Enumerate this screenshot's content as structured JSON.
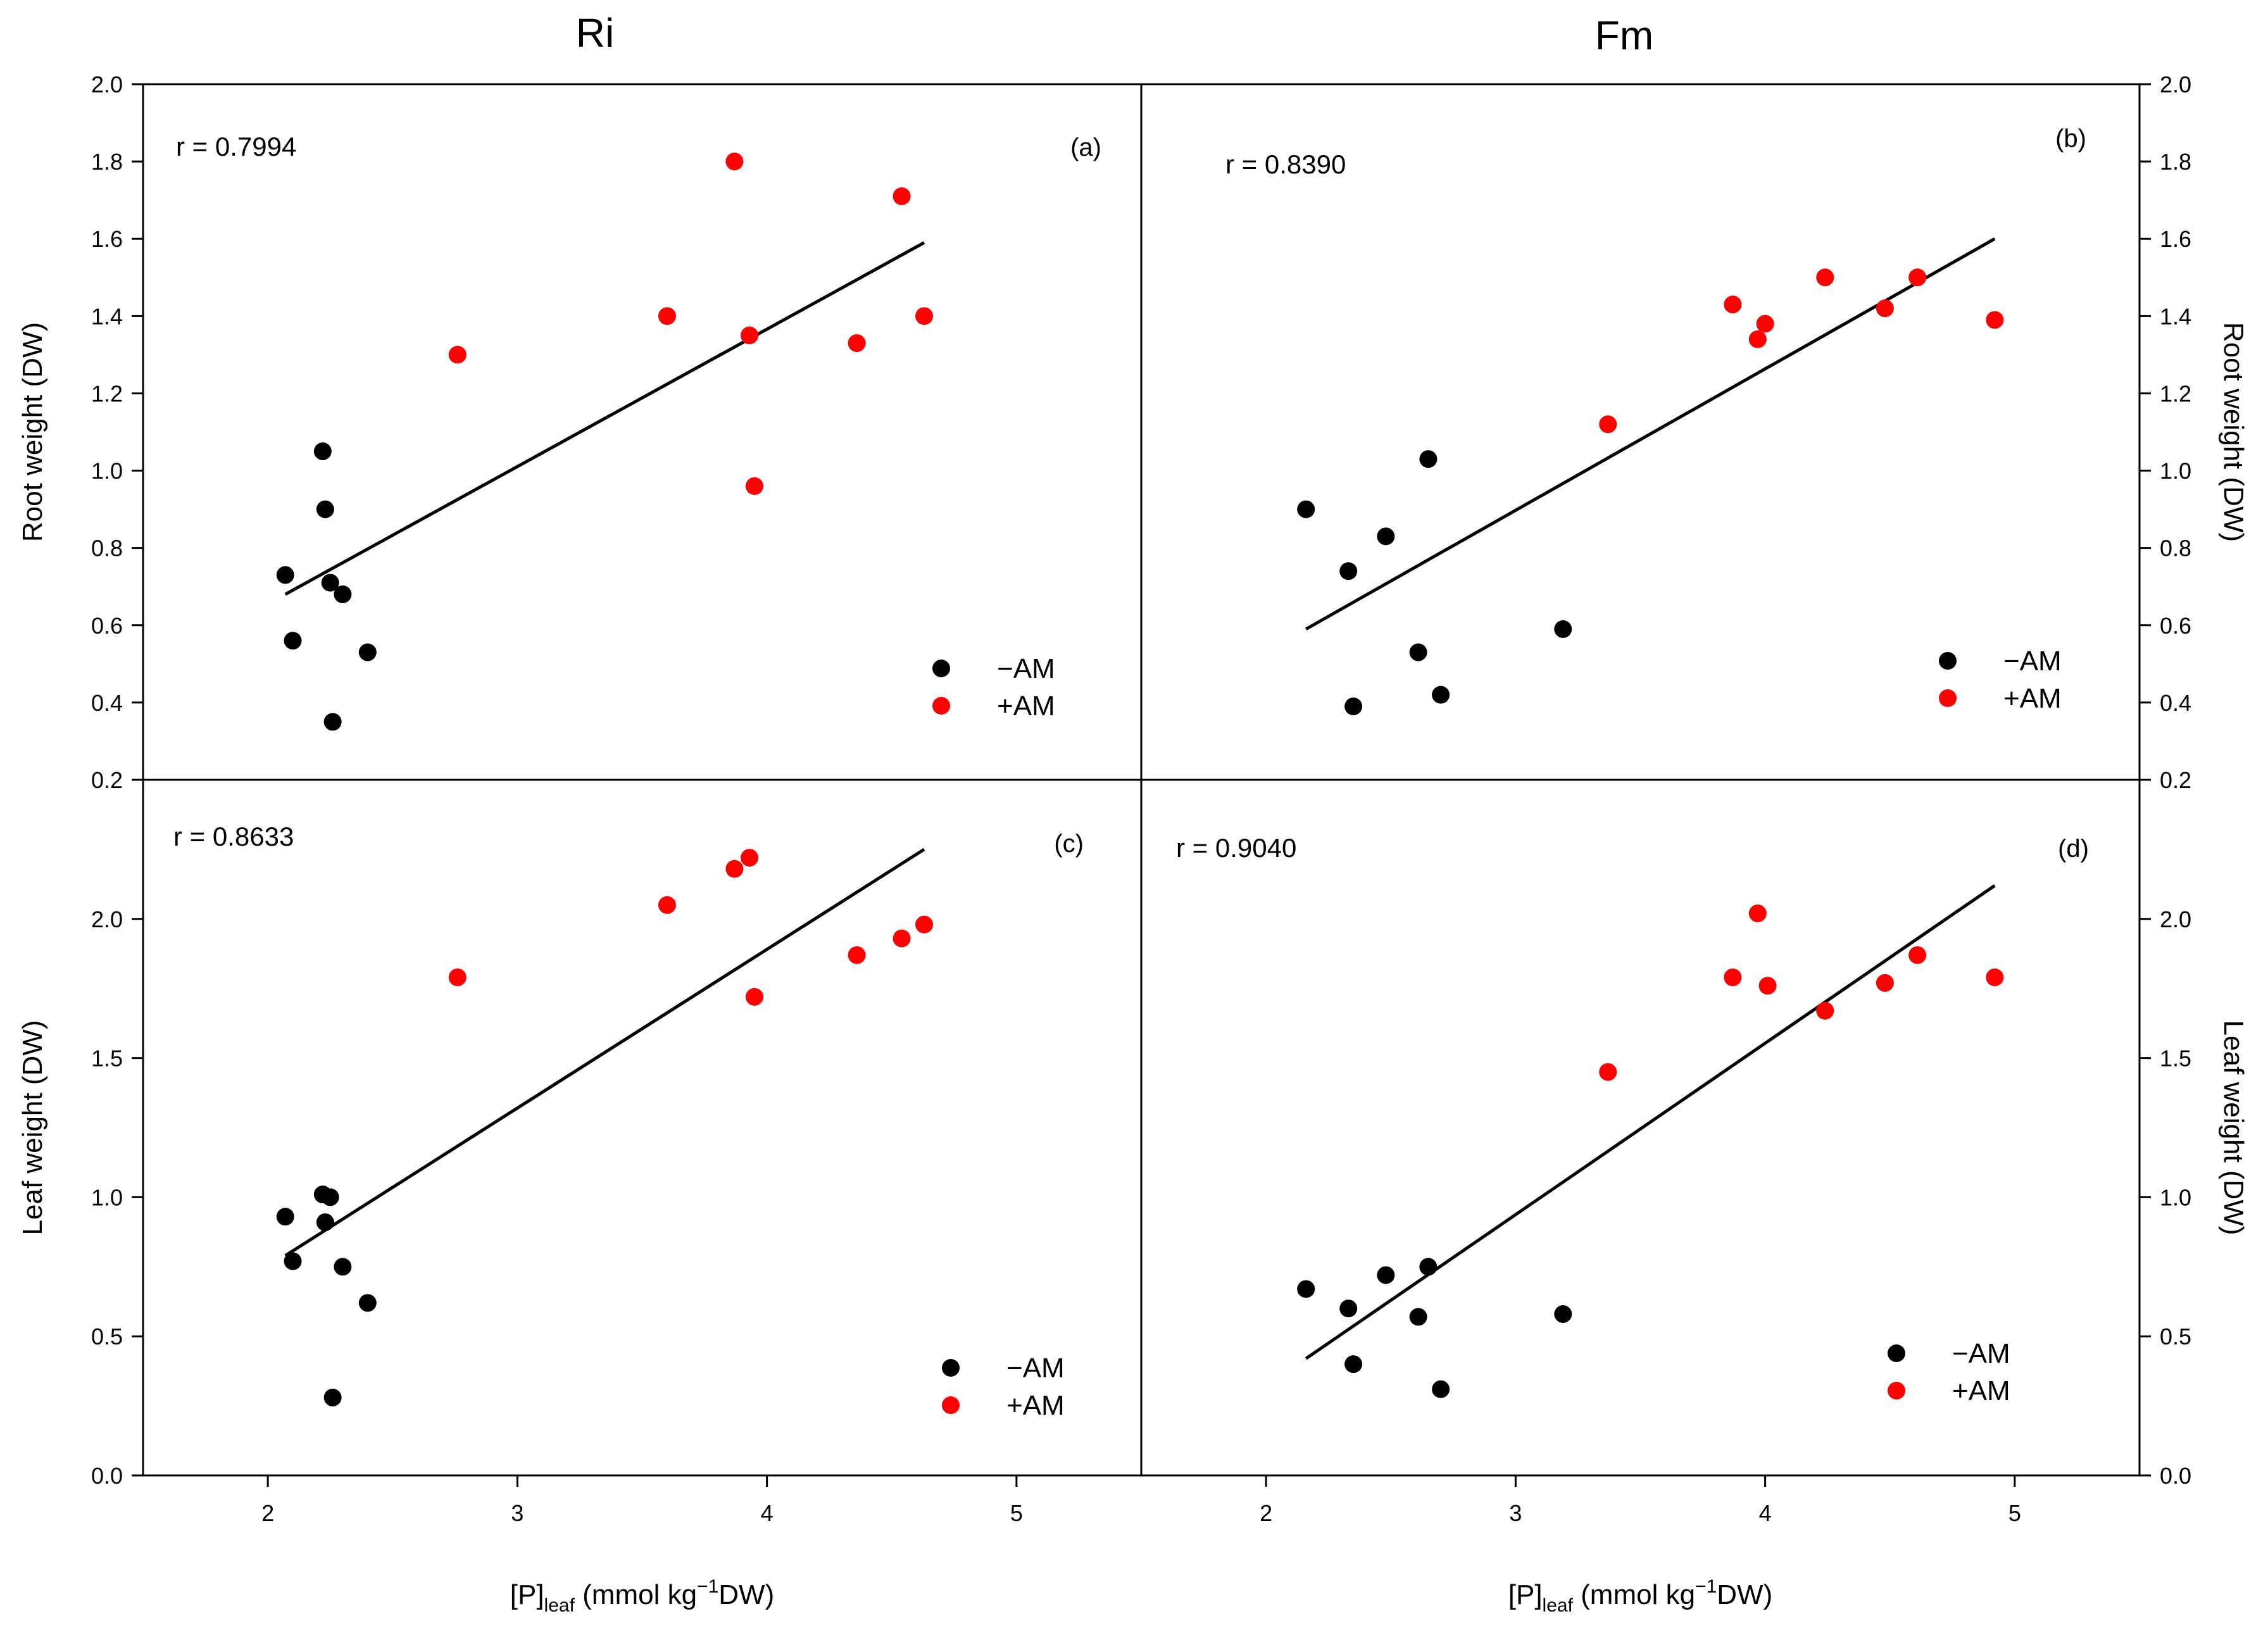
{
  "figure": {
    "column_titles": [
      "Ri",
      "Fm"
    ],
    "xlabel": {
      "prefix": "[P]",
      "subscript": "leaf",
      "mid": " (mmol kg",
      "superscript": "−1",
      "suffix": "DW)"
    },
    "legend_labels": [
      "−AM",
      "+AM"
    ],
    "colors": {
      "minus_am": "#000000",
      "plus_am": "#ff0000",
      "axis": "#000000",
      "fit": "#000000"
    }
  },
  "chart_data": [
    {
      "id": "a",
      "type": "scatter",
      "panel_label": "(a)",
      "column": "Ri",
      "ylabel": "Root weight (DW)",
      "xlabel": "[P]leaf (mmol kg−1DW)",
      "r_text": "r = 0.7994",
      "xlim": [
        1.5,
        5.5
      ],
      "ylim": [
        0.2,
        2.0
      ],
      "xticks": [
        2,
        3,
        4,
        5
      ],
      "yticks": [
        0.2,
        0.4,
        0.6,
        0.8,
        1.0,
        1.2,
        1.4,
        1.6,
        1.8,
        2.0
      ],
      "ytick_labels": [
        "0.2",
        "0.4",
        "0.6",
        "0.8",
        "1.0",
        "1.2",
        "1.4",
        "1.6",
        "1.8",
        "2.0"
      ],
      "series": [
        {
          "name": "−AM",
          "color": "#000000",
          "x": [
            2.07,
            2.1,
            2.22,
            2.23,
            2.25,
            2.26,
            2.3,
            2.4
          ],
          "y": [
            0.73,
            0.56,
            1.05,
            0.9,
            0.71,
            0.35,
            0.68,
            0.53
          ]
        },
        {
          "name": "+AM",
          "color": "#ff0000",
          "x": [
            2.76,
            3.6,
            3.87,
            3.93,
            3.95,
            4.36,
            4.54,
            4.63
          ],
          "y": [
            1.3,
            1.4,
            1.8,
            1.35,
            0.96,
            1.33,
            1.71,
            1.4
          ]
        }
      ],
      "fit": {
        "x": [
          2.07,
          4.63
        ],
        "y": [
          0.68,
          1.59
        ]
      }
    },
    {
      "id": "b",
      "type": "scatter",
      "panel_label": "(b)",
      "column": "Fm",
      "ylabel": "Root weight (DW)",
      "xlabel": "[P]leaf (mmol kg−1DW)",
      "r_text": "r = 0.8390",
      "xlim": [
        1.5,
        5.5
      ],
      "ylim": [
        0.2,
        2.0
      ],
      "xticks": [
        2,
        3,
        4,
        5
      ],
      "yticks": [
        0.2,
        0.4,
        0.6,
        0.8,
        1.0,
        1.2,
        1.4,
        1.6,
        1.8,
        2.0
      ],
      "ytick_labels": [
        "0.2",
        "0.4",
        "0.6",
        "0.8",
        "1.0",
        "1.2",
        "1.4",
        "1.6",
        "1.8",
        "2.0"
      ],
      "series": [
        {
          "name": "−AM",
          "color": "#000000",
          "x": [
            2.16,
            2.33,
            2.35,
            2.48,
            2.61,
            2.65,
            2.7,
            3.19
          ],
          "y": [
            0.9,
            0.74,
            0.39,
            0.83,
            0.53,
            1.03,
            0.42,
            0.59
          ]
        },
        {
          "name": "+AM",
          "color": "#ff0000",
          "x": [
            3.37,
            3.87,
            3.97,
            4.0,
            4.24,
            4.48,
            4.61,
            4.92
          ],
          "y": [
            1.12,
            1.43,
            1.34,
            1.38,
            1.5,
            1.42,
            1.5,
            1.39
          ]
        }
      ],
      "fit": {
        "x": [
          2.16,
          4.92
        ],
        "y": [
          0.59,
          1.6
        ]
      }
    },
    {
      "id": "c",
      "type": "scatter",
      "panel_label": "(c)",
      "column": "Ri",
      "ylabel": "Leaf weight (DW)",
      "xlabel": "[P]leaf (mmol kg−1DW)",
      "r_text": "r = 0.8633",
      "xlim": [
        1.5,
        5.5
      ],
      "ylim": [
        0.0,
        2.5
      ],
      "xticks": [
        2,
        3,
        4,
        5
      ],
      "yticks": [
        0.0,
        0.5,
        1.0,
        1.5,
        2.0
      ],
      "ytick_labels": [
        "0.0",
        "0.5",
        "1.0",
        "1.5",
        "2.0"
      ],
      "series": [
        {
          "name": "−AM",
          "color": "#000000",
          "x": [
            2.07,
            2.1,
            2.22,
            2.23,
            2.25,
            2.26,
            2.3,
            2.4
          ],
          "y": [
            0.93,
            0.77,
            1.01,
            0.91,
            1.0,
            0.28,
            0.75,
            0.62
          ]
        },
        {
          "name": "+AM",
          "color": "#ff0000",
          "x": [
            2.76,
            3.6,
            3.87,
            3.93,
            3.95,
            4.36,
            4.54,
            4.63
          ],
          "y": [
            1.79,
            2.05,
            2.18,
            2.22,
            1.72,
            1.87,
            1.93,
            1.98
          ]
        }
      ],
      "fit": {
        "x": [
          2.07,
          4.63
        ],
        "y": [
          0.79,
          2.25
        ]
      }
    },
    {
      "id": "d",
      "type": "scatter",
      "panel_label": "(d)",
      "column": "Fm",
      "ylabel": "Leaf weight (DW)",
      "xlabel": "[P]leaf (mmol kg−1DW)",
      "r_text": "r = 0.9040",
      "xlim": [
        1.5,
        5.5
      ],
      "ylim": [
        0.0,
        2.5
      ],
      "xticks": [
        2,
        3,
        4,
        5
      ],
      "yticks": [
        0.0,
        0.5,
        1.0,
        1.5,
        2.0
      ],
      "ytick_labels": [
        "0.0",
        "0.5",
        "1.0",
        "1.5",
        "2.0"
      ],
      "series": [
        {
          "name": "−AM",
          "color": "#000000",
          "x": [
            2.16,
            2.33,
            2.35,
            2.48,
            2.61,
            2.65,
            2.7,
            3.19
          ],
          "y": [
            0.67,
            0.6,
            0.4,
            0.72,
            0.57,
            0.75,
            0.31,
            0.58
          ]
        },
        {
          "name": "+AM",
          "color": "#ff0000",
          "x": [
            3.37,
            3.87,
            3.97,
            4.01,
            4.24,
            4.48,
            4.61,
            4.92
          ],
          "y": [
            1.45,
            1.79,
            2.02,
            1.76,
            1.67,
            1.77,
            1.87,
            1.79
          ]
        }
      ],
      "fit": {
        "x": [
          2.16,
          4.92
        ],
        "y": [
          0.42,
          2.12
        ]
      }
    }
  ]
}
